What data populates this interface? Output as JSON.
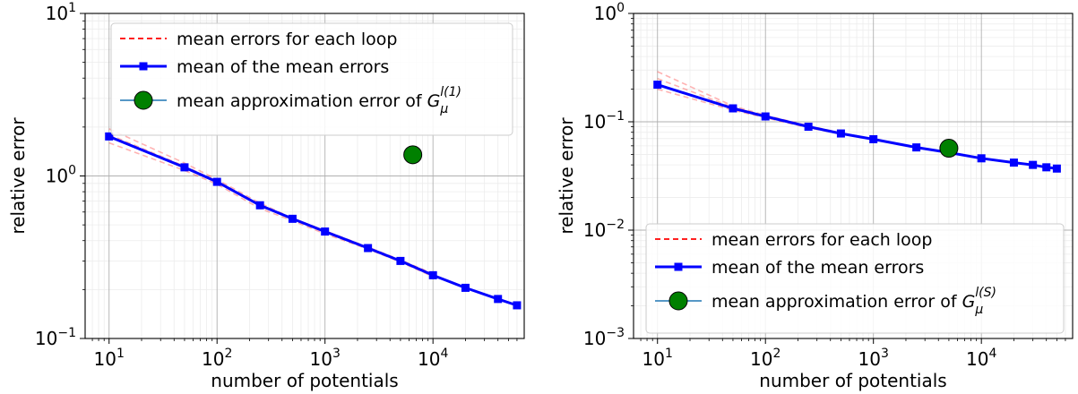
{
  "chart_data": [
    {
      "type": "line",
      "xscale": "log",
      "yscale": "log",
      "xlim": [
        6,
        70000
      ],
      "ylim": [
        0.1,
        10
      ],
      "xlabel": "number of potentials",
      "ylabel": "relative error",
      "xticks": [
        10,
        100,
        1000,
        10000
      ],
      "xtick_labels": [
        [
          "10",
          "1"
        ],
        [
          "10",
          "2"
        ],
        [
          "10",
          "3"
        ],
        [
          "10",
          "4"
        ]
      ],
      "yticks": [
        0.1,
        1,
        10
      ],
      "ytick_labels": [
        [
          "10",
          "−1"
        ],
        [
          "10",
          "0"
        ],
        [
          "10",
          "1"
        ]
      ],
      "grid": true,
      "legend_position": "top",
      "legend": [
        {
          "label": "mean errors for each loop",
          "style": "dashed",
          "color": "#ff0000"
        },
        {
          "label": "mean of the mean errors",
          "style": "line-square",
          "color": "#0000ff"
        },
        {
          "label_parts": [
            "mean approximation error of ",
            "G",
            "μ",
            "l(1)"
          ],
          "style": "line-circle",
          "color": "#1f77b4",
          "marker_color": "#008000"
        }
      ],
      "series": [
        {
          "type": "line",
          "color": "#0000ff",
          "marker": "square",
          "x": [
            10,
            50,
            100,
            250,
            500,
            1000,
            2500,
            5000,
            10000,
            20000,
            40000,
            60000
          ],
          "y": [
            1.75,
            1.13,
            0.92,
            0.66,
            0.545,
            0.455,
            0.36,
            0.3,
            0.245,
            0.205,
            0.175,
            0.16
          ]
        },
        {
          "type": "point",
          "color": "#008000",
          "x": [
            6500
          ],
          "y": [
            1.35
          ]
        }
      ],
      "loops": [
        {
          "x": [
            10,
            50,
            100,
            250,
            500,
            1000,
            2500,
            5000,
            10000
          ],
          "y": [
            1.95,
            1.2,
            0.95,
            0.68,
            0.55,
            0.46,
            0.36,
            0.3,
            0.25
          ]
        },
        {
          "x": [
            10,
            50,
            100,
            250,
            500,
            1000,
            2500,
            5000,
            10000
          ],
          "y": [
            1.6,
            1.08,
            0.89,
            0.63,
            0.53,
            0.44,
            0.355,
            0.295,
            0.24
          ]
        },
        {
          "x": [
            10,
            50,
            100,
            250,
            500,
            1000,
            2500,
            5000,
            10000
          ],
          "y": [
            1.8,
            1.15,
            0.93,
            0.65,
            0.55,
            0.46,
            0.365,
            0.305,
            0.25
          ]
        }
      ]
    },
    {
      "type": "line",
      "xscale": "log",
      "yscale": "log",
      "xlim": [
        6,
        70000
      ],
      "ylim": [
        0.001,
        1
      ],
      "xlabel": "number of potentials",
      "ylabel": "relative error",
      "xticks": [
        10,
        100,
        1000,
        10000
      ],
      "xtick_labels": [
        [
          "10",
          "1"
        ],
        [
          "10",
          "2"
        ],
        [
          "10",
          "3"
        ],
        [
          "10",
          "4"
        ]
      ],
      "yticks": [
        0.001,
        0.01,
        0.1,
        1
      ],
      "ytick_labels": [
        [
          "10",
          "−3"
        ],
        [
          "10",
          "−2"
        ],
        [
          "10",
          "−1"
        ],
        [
          "10",
          "0"
        ]
      ],
      "grid": true,
      "legend_position": "bottom",
      "legend": [
        {
          "label": "mean errors for each loop",
          "style": "dashed",
          "color": "#ff0000"
        },
        {
          "label": "mean of the mean errors",
          "style": "line-square",
          "color": "#0000ff"
        },
        {
          "label_parts": [
            "mean approximation error of ",
            "G",
            "μ",
            "l(S)"
          ],
          "style": "line-circle",
          "color": "#1f77b4",
          "marker_color": "#008000"
        }
      ],
      "series": [
        {
          "type": "line",
          "color": "#0000ff",
          "marker": "square",
          "x": [
            10,
            50,
            100,
            250,
            500,
            1000,
            2500,
            5000,
            10000,
            20000,
            30000,
            40000,
            50000
          ],
          "y": [
            0.22,
            0.133,
            0.112,
            0.09,
            0.078,
            0.069,
            0.058,
            0.052,
            0.046,
            0.042,
            0.04,
            0.038,
            0.037
          ]
        },
        {
          "type": "point",
          "color": "#008000",
          "x": [
            5000
          ],
          "y": [
            0.057
          ]
        }
      ],
      "loops": [
        {
          "x": [
            10,
            50,
            100,
            250,
            500
          ],
          "y": [
            0.29,
            0.14,
            0.115,
            0.092,
            0.079
          ]
        },
        {
          "x": [
            10,
            50,
            100,
            250,
            500
          ],
          "y": [
            0.25,
            0.136,
            0.113,
            0.09,
            0.078
          ]
        },
        {
          "x": [
            10,
            50,
            100,
            250,
            500
          ],
          "y": [
            0.2,
            0.128,
            0.109,
            0.088,
            0.077
          ]
        }
      ]
    }
  ]
}
